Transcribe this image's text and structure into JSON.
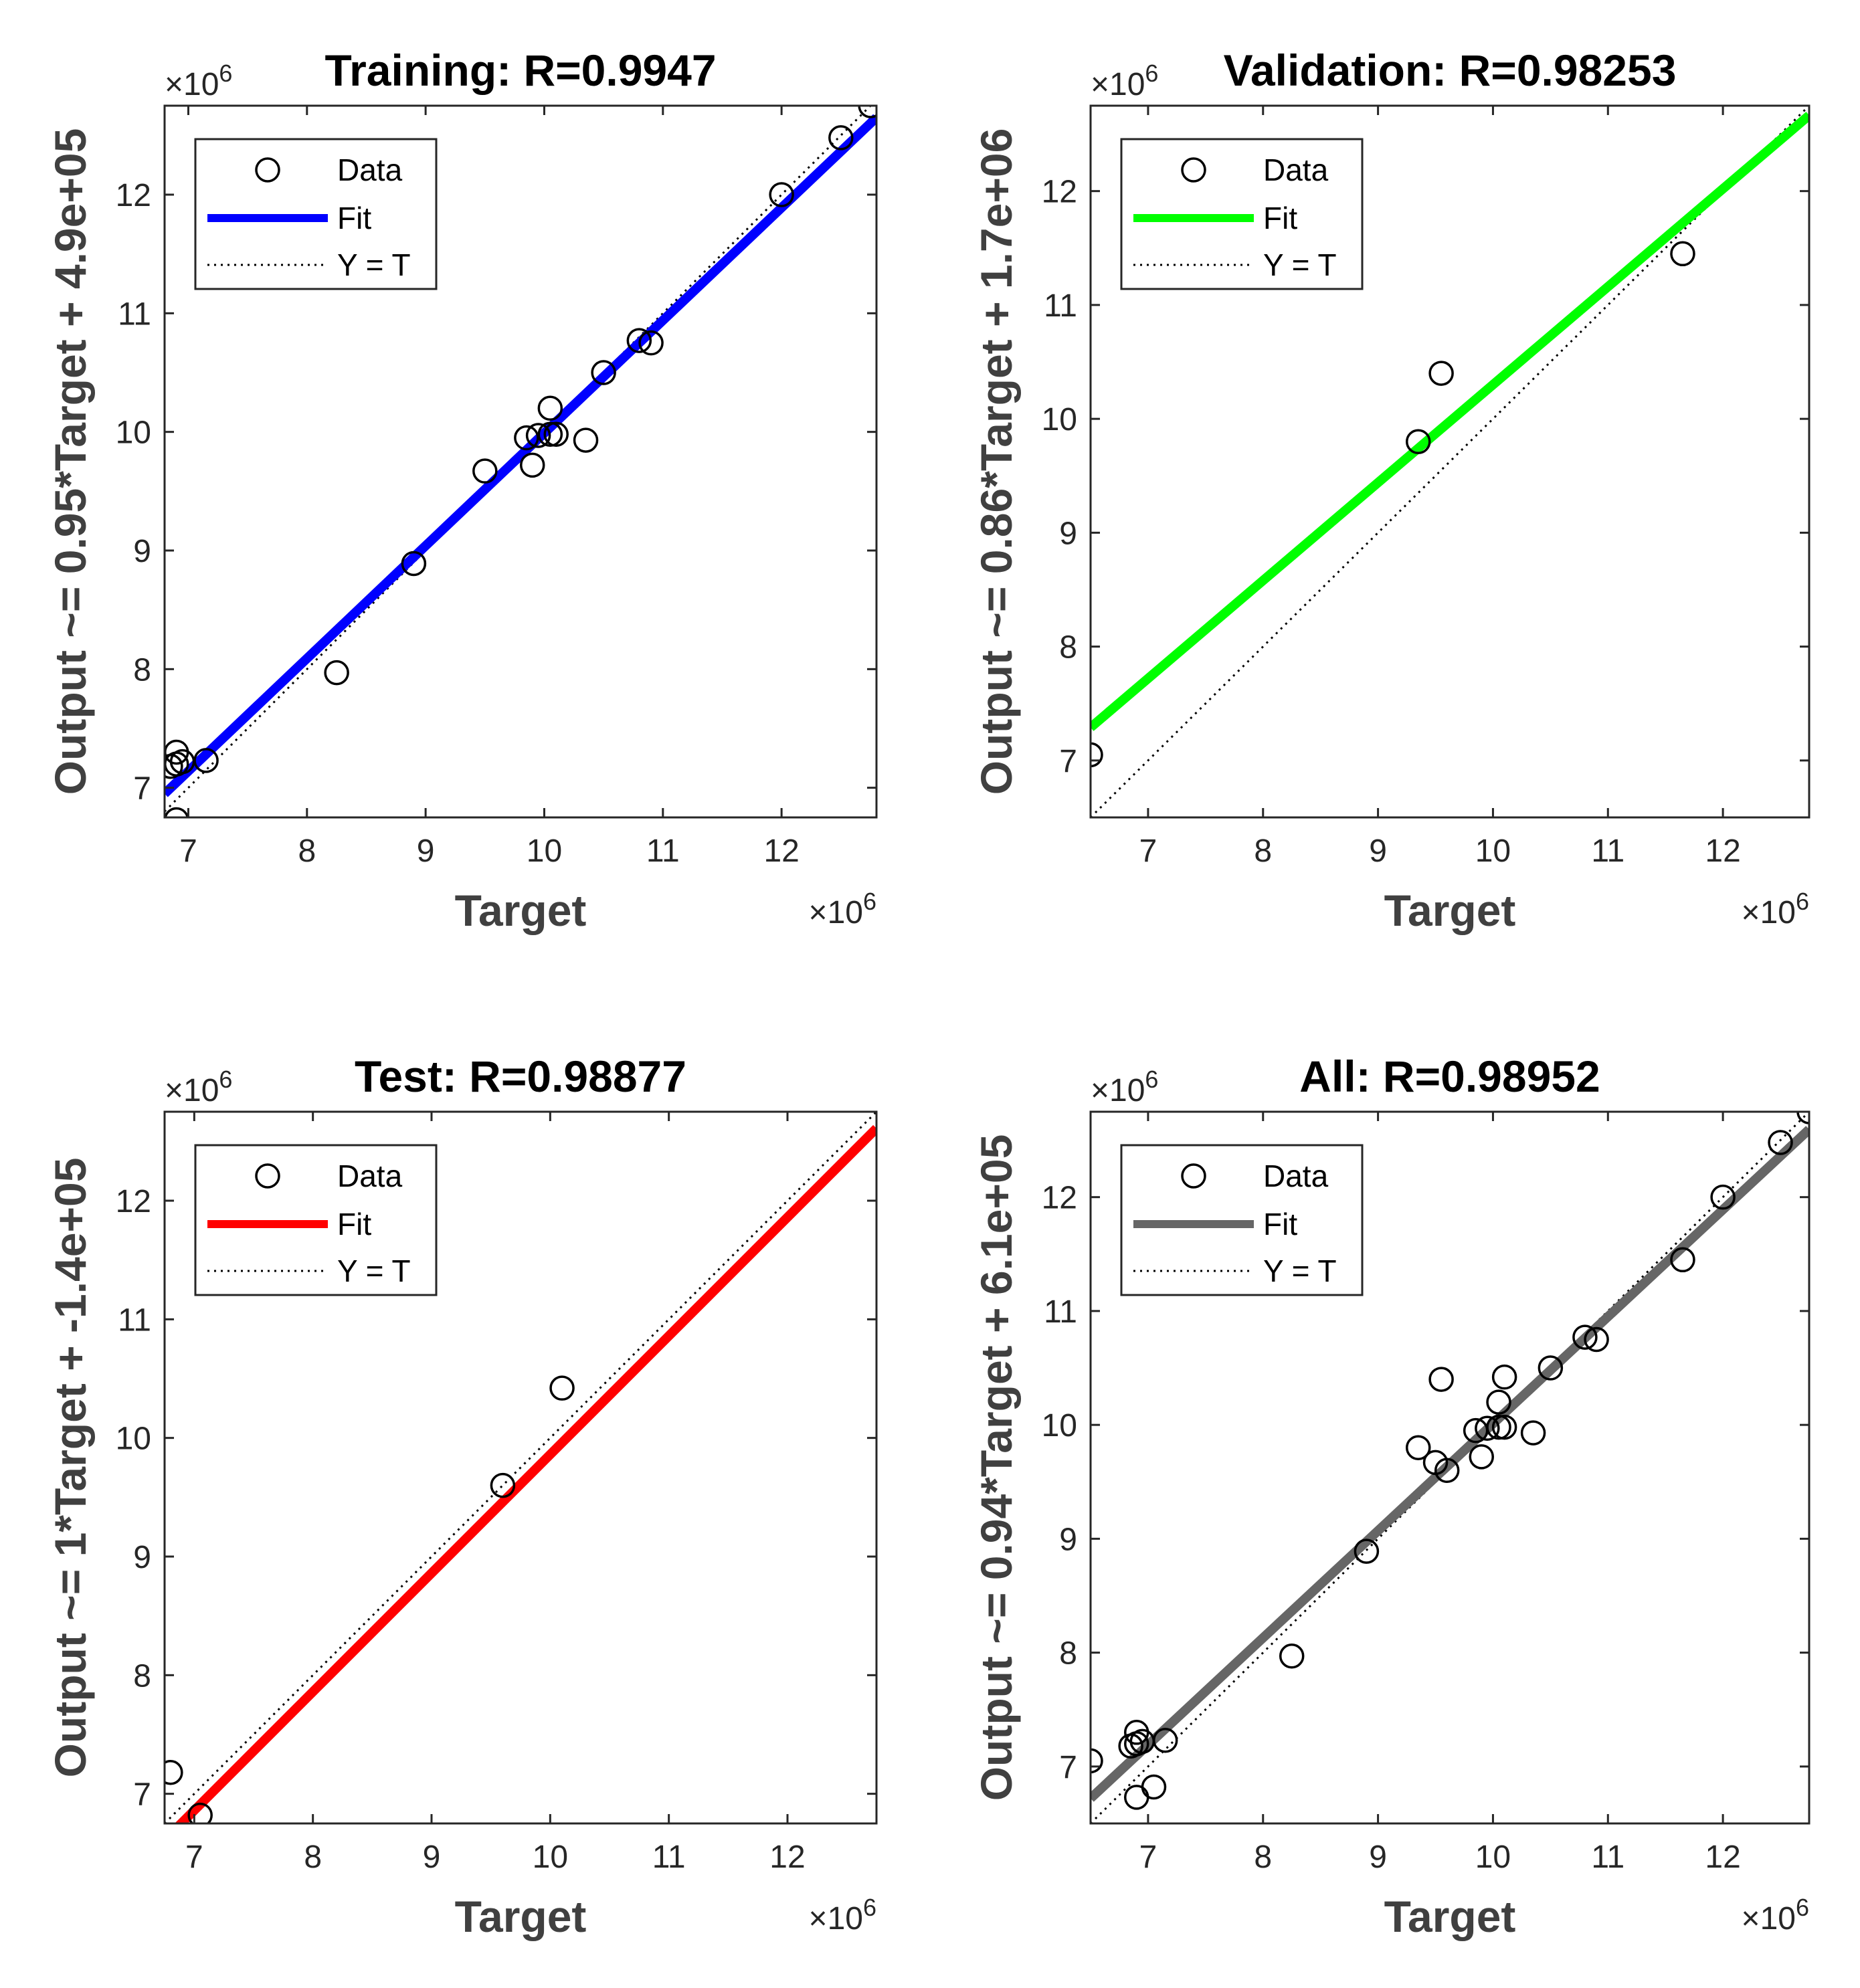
{
  "chart_data": [
    {
      "type": "scatter",
      "title": "Training: R=0.9947",
      "xlabel": "Target",
      "ylabel": "Output ~= 0.95*Target + 4.9e+05",
      "exponent_label": "×10^6",
      "xlim": [
        6.8,
        12.8
      ],
      "ylim": [
        6.75,
        12.75
      ],
      "xticks": [
        7,
        8,
        9,
        10,
        11,
        12
      ],
      "yticks": [
        7,
        8,
        9,
        10,
        11,
        12
      ],
      "legend": [
        "Data",
        "Fit",
        "Y = T"
      ],
      "legend_position": "top-left",
      "fit_color": "#0000ff",
      "fit": {
        "slope": 0.95,
        "intercept": 0.49
      },
      "points": [
        [
          6.85,
          7.18
        ],
        [
          6.9,
          7.3
        ],
        [
          6.9,
          7.2
        ],
        [
          6.95,
          7.22
        ],
        [
          6.9,
          6.73
        ],
        [
          7.15,
          7.23
        ],
        [
          8.25,
          7.97
        ],
        [
          8.9,
          8.89
        ],
        [
          9.5,
          9.67
        ],
        [
          9.85,
          9.95
        ],
        [
          9.9,
          9.72
        ],
        [
          9.95,
          9.97
        ],
        [
          10.05,
          9.98
        ],
        [
          10.05,
          10.2
        ],
        [
          10.1,
          9.98
        ],
        [
          10.35,
          9.93
        ],
        [
          10.5,
          10.5
        ],
        [
          10.8,
          10.77
        ],
        [
          10.9,
          10.75
        ],
        [
          12.0,
          12.0
        ],
        [
          12.5,
          12.48
        ],
        [
          12.75,
          12.75
        ]
      ]
    },
    {
      "type": "scatter",
      "title": "Validation: R=0.98253",
      "xlabel": "Target",
      "ylabel": "Output ~= 0.86*Target + 1.7e+06",
      "exponent_label": "×10^6",
      "xlim": [
        6.5,
        12.75
      ],
      "ylim": [
        6.5,
        12.75
      ],
      "xticks": [
        7,
        8,
        9,
        10,
        11,
        12
      ],
      "yticks": [
        7,
        8,
        9,
        10,
        11,
        12
      ],
      "legend": [
        "Data",
        "Fit",
        "Y = T"
      ],
      "legend_position": "top-left",
      "fit_color": "#00ff00",
      "fit": {
        "slope": 0.86,
        "intercept": 1.7
      },
      "points": [
        [
          6.5,
          7.05
        ],
        [
          9.35,
          9.8
        ],
        [
          9.55,
          10.4
        ],
        [
          11.65,
          11.45
        ]
      ]
    },
    {
      "type": "scatter",
      "title": "Test: R=0.98877",
      "xlabel": "Target",
      "ylabel": "Output ~= 1*Target + -1.4e+05",
      "exponent_label": "×10^6",
      "xlim": [
        6.75,
        12.75
      ],
      "ylim": [
        6.75,
        12.75
      ],
      "xticks": [
        7,
        8,
        9,
        10,
        11,
        12
      ],
      "yticks": [
        7,
        8,
        9,
        10,
        11,
        12
      ],
      "legend": [
        "Data",
        "Fit",
        "Y = T"
      ],
      "legend_position": "top-left",
      "fit_color": "#ff0000",
      "fit": {
        "slope": 1.0,
        "intercept": -0.14
      },
      "points": [
        [
          6.8,
          7.18
        ],
        [
          7.05,
          6.82
        ],
        [
          9.6,
          9.6
        ],
        [
          10.1,
          10.42
        ]
      ]
    },
    {
      "type": "scatter",
      "title": "All: R=0.98952",
      "xlabel": "Target",
      "ylabel": "Output ~= 0.94*Target + 6.1e+05",
      "exponent_label": "×10^6",
      "xlim": [
        6.5,
        12.75
      ],
      "ylim": [
        6.5,
        12.75
      ],
      "xticks": [
        7,
        8,
        9,
        10,
        11,
        12
      ],
      "yticks": [
        7,
        8,
        9,
        10,
        11,
        12
      ],
      "legend": [
        "Data",
        "Fit",
        "Y = T"
      ],
      "legend_position": "top-left",
      "fit_color": "#666666",
      "fit": {
        "slope": 0.94,
        "intercept": 0.61
      },
      "points": [
        [
          6.5,
          7.05
        ],
        [
          6.85,
          7.18
        ],
        [
          6.9,
          7.3
        ],
        [
          6.9,
          7.2
        ],
        [
          6.95,
          7.22
        ],
        [
          6.9,
          6.73
        ],
        [
          7.05,
          6.82
        ],
        [
          7.15,
          7.23
        ],
        [
          8.25,
          7.97
        ],
        [
          8.9,
          8.89
        ],
        [
          9.35,
          9.8
        ],
        [
          9.5,
          9.67
        ],
        [
          9.55,
          10.4
        ],
        [
          9.6,
          9.6
        ],
        [
          9.85,
          9.95
        ],
        [
          9.9,
          9.72
        ],
        [
          9.95,
          9.97
        ],
        [
          10.05,
          9.98
        ],
        [
          10.05,
          10.2
        ],
        [
          10.1,
          9.98
        ],
        [
          10.1,
          10.42
        ],
        [
          10.35,
          9.93
        ],
        [
          10.5,
          10.5
        ],
        [
          10.8,
          10.77
        ],
        [
          10.9,
          10.75
        ],
        [
          11.65,
          11.45
        ],
        [
          12.0,
          12.0
        ],
        [
          12.5,
          12.48
        ],
        [
          12.75,
          12.75
        ]
      ]
    }
  ]
}
